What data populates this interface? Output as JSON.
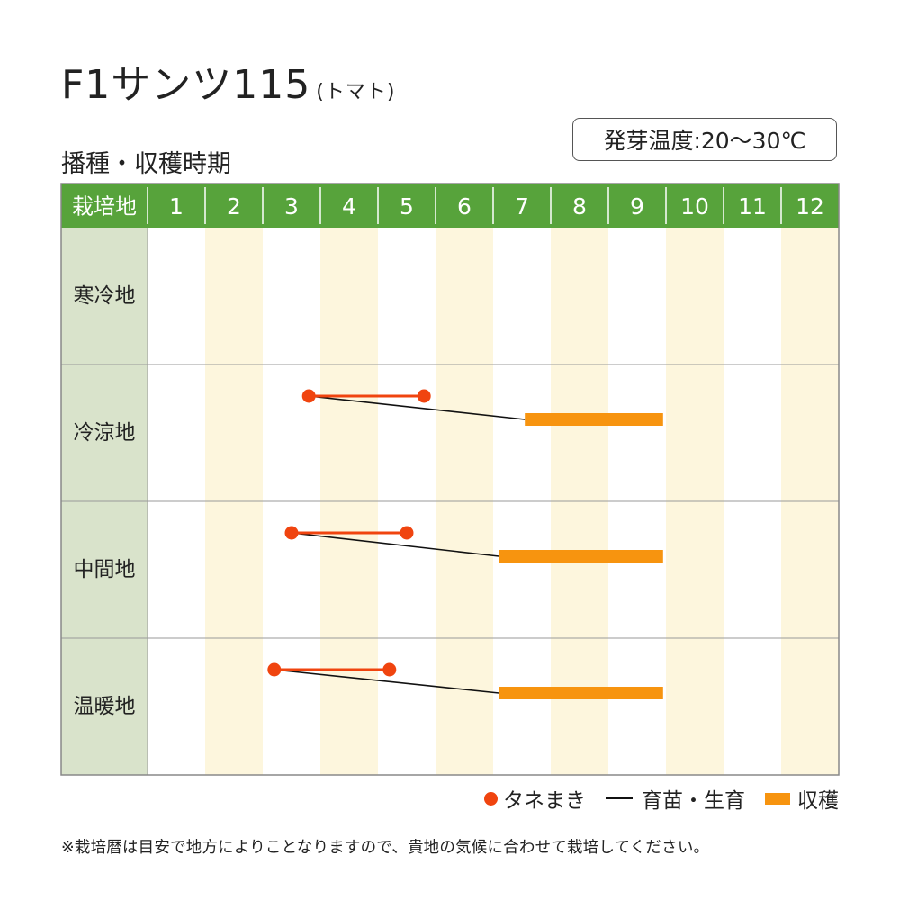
{
  "title": {
    "main": "F1サンツ115",
    "paren": "(トマト)"
  },
  "section_label": "播種・収穫時期",
  "germination_temp": "発芽温度:20〜30℃",
  "colors": {
    "header_green": "#57a33b",
    "label_col": "#d9e3cb",
    "stripe": "#fdf6dd",
    "sowing": "#f0440f",
    "seedling": "#111111",
    "harvest": "#f7940f",
    "grid": "#999999"
  },
  "chart_data": {
    "type": "table",
    "header_label": "栽培地",
    "months": [
      "1",
      "2",
      "3",
      "4",
      "5",
      "6",
      "7",
      "8",
      "9",
      "10",
      "11",
      "12"
    ],
    "x_range": [
      1,
      13
    ],
    "rows": [
      {
        "region": "寒冷地",
        "sowing": null,
        "harvest": null
      },
      {
        "region": "冷涼地",
        "sowing": [
          3.8,
          5.8
        ],
        "harvest": [
          7.55,
          9.95
        ]
      },
      {
        "region": "中間地",
        "sowing": [
          3.5,
          5.5
        ],
        "harvest": [
          7.1,
          9.95
        ]
      },
      {
        "region": "温暖地",
        "sowing": [
          3.2,
          5.2
        ],
        "harvest": [
          7.1,
          9.95
        ]
      }
    ],
    "legend": [
      {
        "key": "sowing",
        "label": "タネまき",
        "shape": "dot"
      },
      {
        "key": "seedling",
        "label": "育苗・生育",
        "shape": "line"
      },
      {
        "key": "harvest",
        "label": "収穫",
        "shape": "bar"
      }
    ]
  },
  "note": "※栽培暦は目安で地方によりことなりますので、貴地の気候に合わせて栽培してください。"
}
